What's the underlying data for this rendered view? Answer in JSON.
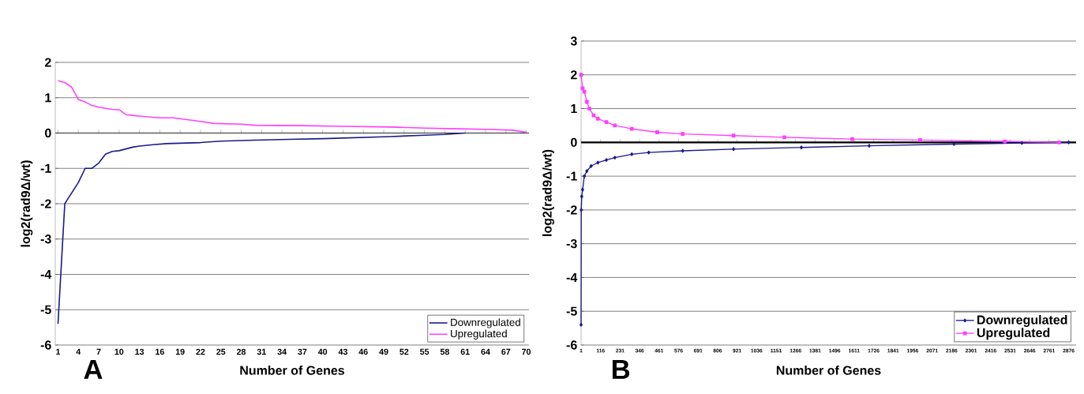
{
  "chart_data": [
    {
      "type": "line",
      "xlabel": "Number of Genes",
      "ylabel": "log2(rad9Δ/wt)",
      "annotations": [
        "A"
      ],
      "xlim": [
        0.6,
        70.4
      ],
      "ylim": [
        -6,
        2
      ],
      "xticks": [
        1,
        4,
        7,
        10,
        13,
        16,
        19,
        22,
        25,
        28,
        31,
        34,
        37,
        40,
        43,
        46,
        49,
        52,
        55,
        58,
        61,
        64,
        67,
        70
      ],
      "yticks": [
        -6,
        -5,
        -4,
        -3,
        -2,
        -1,
        0,
        1,
        2
      ],
      "grid": "y",
      "legend": "bottom right",
      "series": [
        {
          "name": "Downregulated",
          "color": "#1a1a8c",
          "x": [
            1,
            2,
            3,
            4,
            5,
            6,
            7,
            8,
            9,
            10,
            11,
            12,
            13,
            15,
            17,
            22,
            25,
            30,
            35,
            40,
            45,
            50,
            55,
            58,
            61
          ],
          "values": [
            -5.4,
            -2.0,
            -1.7,
            -1.4,
            -1.0,
            -1.0,
            -0.85,
            -0.6,
            -0.52,
            -0.5,
            -0.45,
            -0.4,
            -0.37,
            -0.33,
            -0.3,
            -0.27,
            -0.23,
            -0.2,
            -0.18,
            -0.16,
            -0.13,
            -0.1,
            -0.06,
            -0.04,
            0.0
          ]
        },
        {
          "name": "Upregulated",
          "color": "#ff40ff",
          "x": [
            1,
            2,
            3,
            4,
            5,
            6,
            7,
            8,
            9,
            10,
            11,
            12,
            13,
            16,
            18,
            20,
            22,
            24,
            28,
            30,
            37,
            43,
            50,
            55,
            60,
            65,
            68,
            70
          ],
          "values": [
            1.48,
            1.43,
            1.3,
            0.95,
            0.88,
            0.78,
            0.73,
            0.7,
            0.67,
            0.66,
            0.52,
            0.5,
            0.48,
            0.43,
            0.43,
            0.38,
            0.33,
            0.27,
            0.25,
            0.22,
            0.21,
            0.19,
            0.17,
            0.14,
            0.12,
            0.1,
            0.08,
            0.02
          ]
        }
      ]
    },
    {
      "type": "line",
      "xlabel": "Number of Genes",
      "ylabel": "log2(rad9Δ/wt)",
      "annotations": [
        "B"
      ],
      "xlim": [
        1,
        2920
      ],
      "ylim": [
        -6,
        3
      ],
      "xticks": [
        1,
        116,
        231,
        346,
        461,
        576,
        691,
        806,
        921,
        1036,
        1151,
        1266,
        1381,
        1496,
        1611,
        1726,
        1841,
        1956,
        2071,
        2186,
        2301,
        2416,
        2531,
        2646,
        2761,
        2876
      ],
      "yticks": [
        -6,
        -5,
        -4,
        -3,
        -2,
        -1,
        0,
        1,
        2,
        3
      ],
      "grid": "y",
      "legend": "bottom right",
      "series": [
        {
          "name": "Downregulated",
          "color": "#1a1a8c",
          "marker": "diamond",
          "x": [
            1,
            2,
            5,
            10,
            20,
            35,
            60,
            100,
            150,
            200,
            300,
            400,
            600,
            900,
            1300,
            1700,
            2200,
            2600,
            2876
          ],
          "values": [
            -5.4,
            -2.0,
            -1.6,
            -1.4,
            -1.0,
            -0.85,
            -0.7,
            -0.6,
            -0.52,
            -0.45,
            -0.35,
            -0.3,
            -0.25,
            -0.2,
            -0.15,
            -0.1,
            -0.05,
            -0.02,
            0.0
          ]
        },
        {
          "name": "Upregulated",
          "color": "#ff40ff",
          "marker": "square",
          "x": [
            1,
            10,
            20,
            35,
            50,
            75,
            100,
            150,
            200,
            300,
            450,
            600,
            900,
            1200,
            1600,
            2000,
            2500,
            2820
          ],
          "values": [
            2.0,
            1.6,
            1.5,
            1.2,
            1.0,
            0.8,
            0.7,
            0.6,
            0.5,
            0.4,
            0.3,
            0.25,
            0.2,
            0.15,
            0.1,
            0.07,
            0.03,
            0.0
          ]
        }
      ]
    }
  ]
}
